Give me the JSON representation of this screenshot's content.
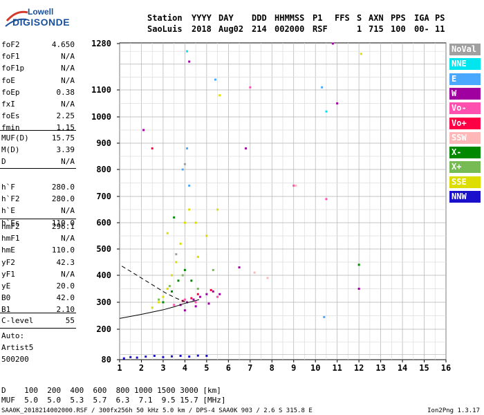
{
  "logo": {
    "line1": "Lowell",
    "line2": "DIGISONDE"
  },
  "header": {
    "row1": [
      "Station",
      "YYYY",
      "DAY",
      "DDD",
      "HHMMSS",
      "P1",
      "FFS",
      "S",
      "AXN",
      "PPS",
      "IGA",
      "PS"
    ],
    "row2": [
      "SaoLuis",
      "2018",
      "Aug02",
      "214",
      "002000",
      "RSF",
      "1",
      "715",
      "100",
      "00-",
      "11"
    ]
  },
  "params_group1": [
    {
      "name": "foF2",
      "value": "4.650"
    },
    {
      "name": "foF1",
      "value": "N/A"
    },
    {
      "name": "foF1p",
      "value": "N/A"
    },
    {
      "name": "foE",
      "value": "N/A"
    },
    {
      "name": "foEp",
      "value": "0.38"
    },
    {
      "name": "fxI",
      "value": "N/A"
    },
    {
      "name": "foEs",
      "value": "2.25"
    },
    {
      "name": "fmin",
      "value": "1.15"
    }
  ],
  "params_group2": [
    {
      "name": "MUF(D)",
      "value": "15.75"
    },
    {
      "name": "M(D)",
      "value": "3.39"
    },
    {
      "name": "D",
      "value": "N/A"
    }
  ],
  "params_group3": [
    {
      "name": "h`F",
      "value": "280.0"
    },
    {
      "name": "h`F2",
      "value": "280.0"
    },
    {
      "name": "h`E",
      "value": "N/A"
    },
    {
      "name": "h`Es",
      "value": "110.0"
    }
  ],
  "params_group4": [
    {
      "name": "hmF2",
      "value": "296.1"
    },
    {
      "name": "hmF1",
      "value": "N/A"
    },
    {
      "name": "hmE",
      "value": "110.0"
    },
    {
      "name": "yF2",
      "value": "42.3"
    },
    {
      "name": "yF1",
      "value": "N/A"
    },
    {
      "name": "yE",
      "value": "20.0"
    },
    {
      "name": "B0",
      "value": "42.0"
    },
    {
      "name": "B1",
      "value": "2.10"
    }
  ],
  "params_group5": [
    {
      "name": "C-level",
      "value": "55"
    }
  ],
  "auto_block": [
    "Auto:",
    "Artist5",
    "500200"
  ],
  "legend": [
    {
      "label": "NoVal",
      "color": "#a0a0a0"
    },
    {
      "label": "NNE",
      "color": "#00e5ee"
    },
    {
      "label": "E",
      "color": "#4aa8ff"
    },
    {
      "label": "W",
      "color": "#a000a0"
    },
    {
      "label": "Vo-",
      "color": "#ff50b0"
    },
    {
      "label": "Vo+",
      "color": "#ff0044"
    },
    {
      "label": "SSW",
      "color": "#ffb8b8"
    },
    {
      "label": "X-",
      "color": "#008800"
    },
    {
      "label": "X+",
      "color": "#77bb55"
    },
    {
      "label": "SSE",
      "color": "#dddd00"
    },
    {
      "label": "NNW",
      "color": "#1a10cc"
    }
  ],
  "bottom": {
    "d_row": "D    100  200  400  600  800 1000 1500 3000 [km]",
    "muf_row": "MUF  5.0  5.0  5.3  5.7  6.3  7.1  9.5 15.7 [MHz]"
  },
  "footer": {
    "left": "SAA0K_2018214002000.RSF / 300fx256h 50 kHz 5.0 km / DPS-4 SAA0K 903 / 2.6 S 315.8 E",
    "right": "Ion2Png 1.3.17"
  },
  "chart_data": {
    "type": "scatter",
    "title": "",
    "xlabel": "",
    "ylabel": "",
    "xlim": [
      1,
      16
    ],
    "ylim": [
      80,
      1280
    ],
    "x_ticks": [
      1,
      2,
      3,
      4,
      5,
      6,
      7,
      8,
      9,
      10,
      11,
      12,
      13,
      14,
      15,
      16
    ],
    "y_ticks": [
      80,
      200,
      300,
      400,
      500,
      600,
      700,
      800,
      900,
      1000,
      1100,
      1280
    ],
    "grid": true,
    "series": [
      {
        "name": "NNW",
        "color": "#1a10cc",
        "points": [
          [
            1.2,
            85
          ],
          [
            1.5,
            90
          ],
          [
            1.8,
            88
          ],
          [
            2.2,
            92
          ],
          [
            2.6,
            95
          ],
          [
            3.0,
            90
          ],
          [
            3.4,
            93
          ],
          [
            3.8,
            95
          ],
          [
            4.2,
            92
          ],
          [
            4.6,
            96
          ],
          [
            5.0,
            95
          ]
        ]
      },
      {
        "name": "W",
        "color": "#a000a0",
        "points": [
          [
            3.8,
            290
          ],
          [
            4.1,
            300
          ],
          [
            4.4,
            310
          ],
          [
            4.7,
            320
          ],
          [
            5.0,
            330
          ],
          [
            5.3,
            340
          ],
          [
            5.6,
            330
          ],
          [
            4.0,
            270
          ],
          [
            4.5,
            285
          ],
          [
            5.1,
            295
          ],
          [
            6.5,
            430
          ],
          [
            6.8,
            880
          ],
          [
            11.0,
            1050
          ],
          [
            12.0,
            350
          ],
          [
            4.2,
            1210
          ],
          [
            10.8,
            1280
          ],
          [
            2.1,
            950
          ]
        ]
      },
      {
        "name": "Vo+",
        "color": "#ff0044",
        "points": [
          [
            3.9,
            305
          ],
          [
            4.3,
            315
          ],
          [
            4.6,
            330
          ],
          [
            5.2,
            345
          ],
          [
            2.5,
            880
          ]
        ]
      },
      {
        "name": "Vo-",
        "color": "#ff50b0",
        "points": [
          [
            3.5,
            290
          ],
          [
            4.0,
            310
          ],
          [
            4.5,
            300
          ],
          [
            5.5,
            320
          ],
          [
            7.0,
            1110
          ],
          [
            9.0,
            740
          ],
          [
            10.5,
            690
          ]
        ]
      },
      {
        "name": "SSE",
        "color": "#dddd00",
        "points": [
          [
            2.5,
            280
          ],
          [
            2.8,
            300
          ],
          [
            3.0,
            320
          ],
          [
            3.2,
            350
          ],
          [
            3.4,
            400
          ],
          [
            3.6,
            450
          ],
          [
            3.8,
            520
          ],
          [
            4.0,
            600
          ],
          [
            4.2,
            650
          ],
          [
            4.5,
            600
          ],
          [
            5.0,
            550
          ],
          [
            5.5,
            650
          ],
          [
            4.6,
            470
          ],
          [
            3.2,
            560
          ],
          [
            12.1,
            1240
          ],
          [
            5.6,
            1080
          ]
        ]
      },
      {
        "name": "X-",
        "color": "#008800",
        "points": [
          [
            3.0,
            300
          ],
          [
            3.4,
            340
          ],
          [
            3.7,
            380
          ],
          [
            4.0,
            420
          ],
          [
            4.3,
            380
          ],
          [
            3.5,
            620
          ],
          [
            12.0,
            440
          ]
        ]
      },
      {
        "name": "X+",
        "color": "#77bb55",
        "points": [
          [
            2.8,
            310
          ],
          [
            3.3,
            360
          ],
          [
            3.9,
            400
          ],
          [
            4.6,
            350
          ],
          [
            5.3,
            420
          ]
        ]
      },
      {
        "name": "E",
        "color": "#4aa8ff",
        "points": [
          [
            4.1,
            880
          ],
          [
            4.2,
            740
          ],
          [
            10.3,
            1110
          ],
          [
            5.4,
            1140
          ],
          [
            10.4,
            245
          ],
          [
            3.9,
            800
          ]
        ]
      },
      {
        "name": "NNE",
        "color": "#00e5ee",
        "points": [
          [
            4.1,
            1250
          ],
          [
            10.5,
            1020
          ]
        ]
      },
      {
        "name": "NoVal",
        "color": "#a0a0a0",
        "points": [
          [
            4.0,
            820
          ],
          [
            3.6,
            480
          ]
        ]
      },
      {
        "name": "SSW",
        "color": "#ffb8b8",
        "points": [
          [
            9.1,
            740
          ],
          [
            7.8,
            390
          ],
          [
            7.2,
            410
          ]
        ]
      }
    ],
    "trace_lines": [
      {
        "style": "solid",
        "points": [
          [
            1.0,
            240
          ],
          [
            2.0,
            255
          ],
          [
            3.0,
            272
          ],
          [
            3.5,
            283
          ],
          [
            4.0,
            296
          ],
          [
            4.5,
            306
          ],
          [
            4.65,
            310
          ]
        ]
      },
      {
        "style": "dashed",
        "points": [
          [
            1.1,
            435
          ],
          [
            1.6,
            410
          ],
          [
            2.1,
            385
          ],
          [
            2.6,
            360
          ],
          [
            3.1,
            335
          ],
          [
            3.6,
            315
          ],
          [
            4.0,
            302
          ]
        ]
      }
    ]
  }
}
